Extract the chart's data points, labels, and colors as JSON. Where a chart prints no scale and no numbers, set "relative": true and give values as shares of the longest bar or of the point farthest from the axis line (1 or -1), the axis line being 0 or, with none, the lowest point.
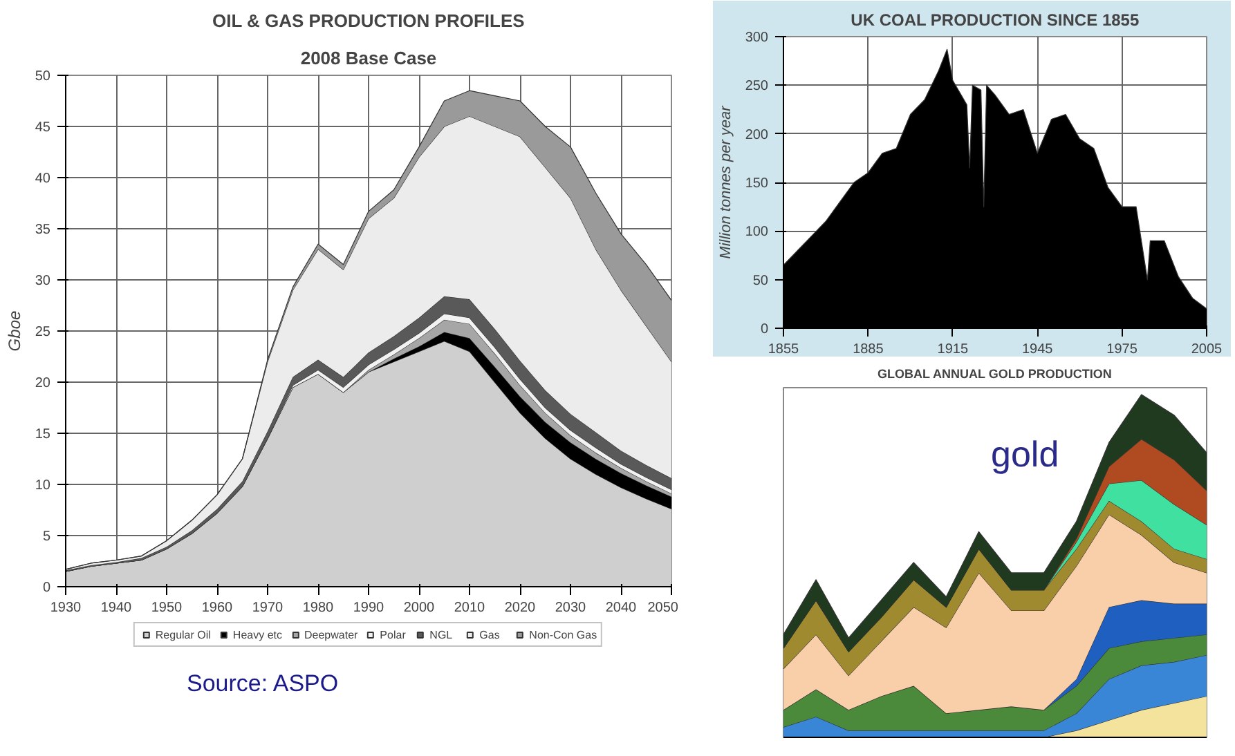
{
  "chart_data": [
    {
      "type": "area",
      "title": "OIL & GAS PRODUCTION PROFILES",
      "subtitle": "2008 Base Case",
      "ylabel": "Gboe",
      "stacked": true,
      "x": [
        1930,
        1935,
        1940,
        1945,
        1950,
        1955,
        1960,
        1965,
        1970,
        1975,
        1980,
        1985,
        1990,
        1995,
        2000,
        2005,
        2010,
        2015,
        2020,
        2025,
        2030,
        2035,
        2040,
        2045,
        2050
      ],
      "xlim": [
        1930,
        2050
      ],
      "xticks": [
        1930,
        1940,
        1950,
        1960,
        1970,
        1980,
        1990,
        2000,
        2010,
        2020,
        2030,
        2040,
        2050
      ],
      "ylim": [
        0,
        50
      ],
      "yticks": [
        0,
        5,
        10,
        15,
        20,
        25,
        30,
        35,
        40,
        45,
        50
      ],
      "grid": true,
      "legend": "bottom",
      "annotations": [
        "Source: ASPO"
      ],
      "series": [
        {
          "name": "Regular Oil",
          "color": "#cfcfcf",
          "values": [
            1.5,
            2,
            2.3,
            2.6,
            3.7,
            5.2,
            7.2,
            9.8,
            14.5,
            19.5,
            20.8,
            19,
            21,
            22,
            23,
            24,
            23,
            20,
            17,
            14.5,
            12.5,
            11,
            9.7,
            8.6,
            7.6
          ]
        },
        {
          "name": "Heavy etc",
          "color": "#000000",
          "values": [
            0,
            0,
            0,
            0,
            0,
            0,
            0,
            0,
            0,
            0,
            0,
            0,
            0,
            0.3,
            0.5,
            0.9,
            1.3,
            1.5,
            1.6,
            1.6,
            1.6,
            1.5,
            1.4,
            1.3,
            1.2
          ]
        },
        {
          "name": "Deepwater",
          "color": "#a6a6a6",
          "values": [
            0,
            0,
            0,
            0,
            0,
            0,
            0,
            0,
            0,
            0,
            0,
            0,
            0.2,
            0.4,
            0.8,
            1.2,
            1.4,
            1.3,
            1.1,
            0.9,
            0.7,
            0.6,
            0.5,
            0.4,
            0.3
          ]
        },
        {
          "name": "Polar",
          "color": "#f2f2f2",
          "values": [
            0,
            0,
            0,
            0,
            0,
            0,
            0,
            0,
            0,
            0.2,
            0.4,
            0.5,
            0.5,
            0.5,
            0.5,
            0.6,
            0.6,
            0.6,
            0.6,
            0.5,
            0.5,
            0.5,
            0.4,
            0.4,
            0.4
          ]
        },
        {
          "name": "NGL",
          "color": "#595959",
          "values": [
            0.1,
            0.1,
            0.1,
            0.2,
            0.2,
            0.3,
            0.4,
            0.5,
            0.7,
            0.8,
            1,
            1,
            1.2,
            1.3,
            1.5,
            1.7,
            1.8,
            1.8,
            1.8,
            1.7,
            1.6,
            1.5,
            1.3,
            1.2,
            1.1
          ]
        },
        {
          "name": "Gas",
          "color": "#ececec",
          "values": [
            0.1,
            0.2,
            0.2,
            0.2,
            0.6,
            1.0,
            1.4,
            2.2,
            6.8,
            8.5,
            10.8,
            10.5,
            13.1,
            13.5,
            15.7,
            16.6,
            17.9,
            19.8,
            21.9,
            21.8,
            21.1,
            17.9,
            15.7,
            13.6,
            11.4
          ]
        },
        {
          "name": "Non-Con Gas",
          "color": "#9a9a9a",
          "values": [
            0,
            0,
            0,
            0,
            0,
            0,
            0,
            0,
            0.2,
            0.3,
            0.5,
            0.5,
            0.7,
            0.8,
            1,
            2.5,
            2.5,
            3,
            3.5,
            4,
            5,
            5.5,
            5.5,
            6,
            6
          ]
        }
      ]
    },
    {
      "type": "area",
      "title": "UK COAL PRODUCTION SINCE 1855",
      "ylabel": "Million tonnes per year",
      "x": [
        1855,
        1860,
        1865,
        1870,
        1875,
        1880,
        1885,
        1890,
        1895,
        1900,
        1905,
        1910,
        1913,
        1915,
        1920,
        1921,
        1922,
        1925,
        1926,
        1927,
        1930,
        1935,
        1940,
        1945,
        1950,
        1955,
        1960,
        1965,
        1970,
        1975,
        1980,
        1984,
        1985,
        1990,
        1995,
        2000,
        2005
      ],
      "values": [
        65,
        80,
        95,
        110,
        130,
        150,
        160,
        180,
        185,
        220,
        235,
        265,
        287,
        255,
        230,
        165,
        250,
        245,
        125,
        250,
        240,
        220,
        225,
        180,
        215,
        220,
        195,
        185,
        145,
        125,
        125,
        50,
        90,
        90,
        53,
        31,
        20
      ],
      "color": "#000000",
      "xlim": [
        1855,
        2005
      ],
      "xticks": [
        1855,
        1885,
        1915,
        1945,
        1975,
        2005
      ],
      "ylim": [
        0,
        300
      ],
      "yticks": [
        0,
        50,
        100,
        150,
        200,
        250,
        300
      ],
      "grid": true
    },
    {
      "type": "area",
      "title": "GLOBAL ANNUAL GOLD PRODUCTION",
      "relative": true,
      "stacked": true,
      "annotations": [
        "gold"
      ],
      "categories": [
        null,
        null,
        null,
        null,
        null,
        null,
        null,
        null,
        null,
        null,
        null,
        null,
        null,
        null
      ],
      "series": [
        {
          "color": "#f3e39c",
          "values": [
            0,
            0,
            0,
            0,
            0,
            0,
            0,
            0,
            0,
            0.02,
            0.05,
            0.08,
            0.1,
            0.12
          ]
        },
        {
          "color": "#3a86d6",
          "values": [
            0.03,
            0.06,
            0.02,
            0.02,
            0.02,
            0.02,
            0.02,
            0.02,
            0.02,
            0.05,
            0.12,
            0.13,
            0.12,
            0.12
          ]
        },
        {
          "color": "#4a8a3a",
          "values": [
            0.05,
            0.08,
            0.06,
            0.1,
            0.13,
            0.05,
            0.06,
            0.07,
            0.06,
            0.08,
            0.09,
            0.07,
            0.07,
            0.06
          ]
        },
        {
          "color": "#1e5fc0",
          "values": [
            0,
            0,
            0,
            0,
            0,
            0,
            0,
            0,
            0,
            0.02,
            0.12,
            0.12,
            0.1,
            0.09
          ]
        },
        {
          "color": "#f9cfaa",
          "values": [
            0.12,
            0.16,
            0.1,
            0.16,
            0.23,
            0.25,
            0.4,
            0.28,
            0.29,
            0.33,
            0.27,
            0.19,
            0.12,
            0.09
          ]
        },
        {
          "color": "#a08a30",
          "values": [
            0.06,
            0.1,
            0.07,
            0.07,
            0.08,
            0.06,
            0.07,
            0.06,
            0.06,
            0.05,
            0.04,
            0.04,
            0.04,
            0.04
          ]
        },
        {
          "color": "#3fe0a0",
          "values": [
            0,
            0,
            0,
            0,
            0,
            0,
            0,
            0,
            0,
            0.02,
            0.05,
            0.12,
            0.13,
            0.1
          ]
        },
        {
          "color": "#b04a20",
          "values": [
            0,
            0,
            0,
            0,
            0,
            0,
            0,
            0,
            0,
            0.01,
            0.05,
            0.12,
            0.13,
            0.1
          ]
        },
        {
          "color": "#203a20",
          "values": [
            0.04,
            0.06,
            0.04,
            0.05,
            0.05,
            0.03,
            0.05,
            0.05,
            0.05,
            0.05,
            0.07,
            0.13,
            0.13,
            0.11
          ]
        }
      ]
    }
  ]
}
